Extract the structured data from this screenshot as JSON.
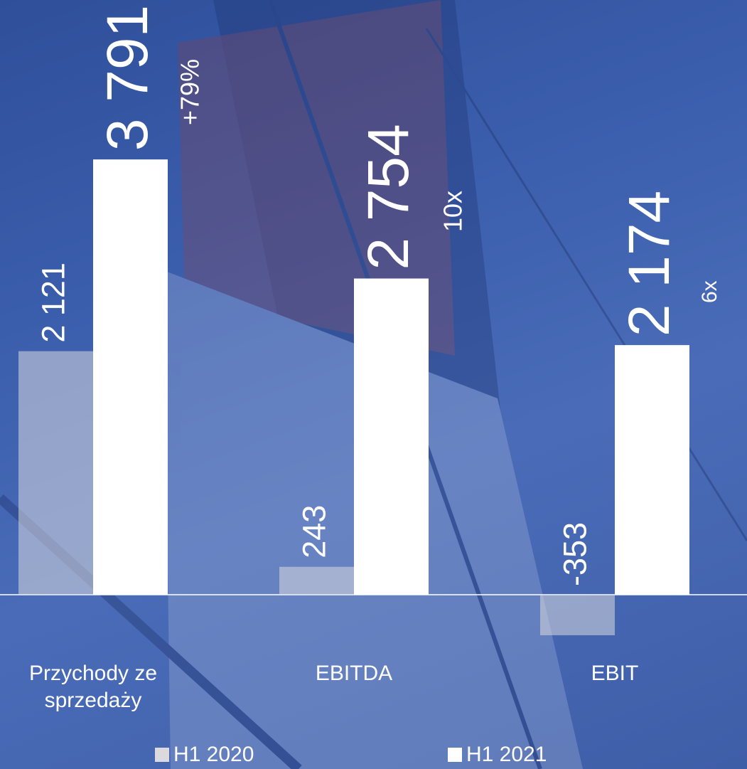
{
  "chart_data": {
    "type": "bar",
    "categories": [
      "Przychody ze sprzedaży",
      "EBITDA",
      "EBIT"
    ],
    "series": [
      {
        "name": "H1 2020",
        "color": "#d9d9de",
        "values": [
          2121,
          243,
          -353
        ],
        "value_labels": [
          "2 121",
          "243",
          "-353"
        ]
      },
      {
        "name": "H1 2021",
        "color": "#ffffff",
        "values": [
          3791,
          2754,
          2174
        ],
        "value_labels": [
          "3 791",
          "2 754",
          "2 174"
        ]
      }
    ],
    "annotations": [
      "+79%",
      "10x",
      "6x"
    ],
    "ylim": [
      -500,
      5000
    ]
  }
}
